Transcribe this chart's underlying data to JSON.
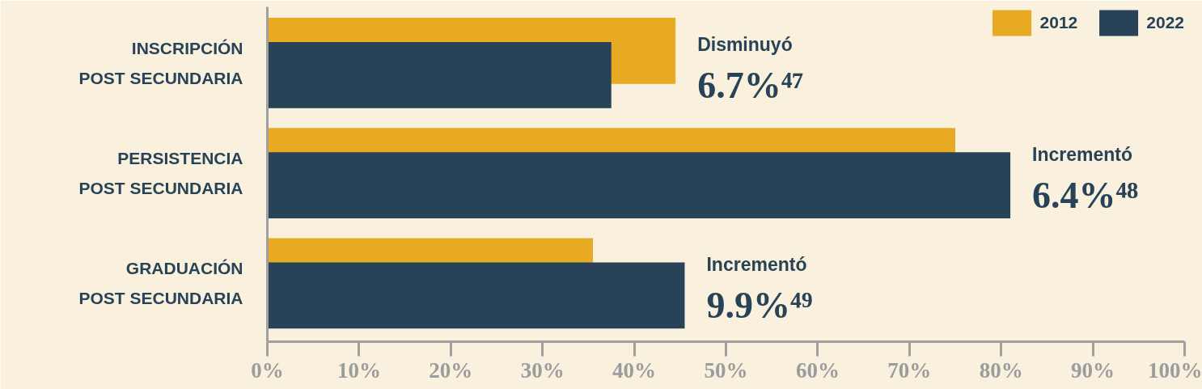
{
  "chart_data": {
    "type": "bar",
    "orientation": "horizontal",
    "categories": [
      "INSCRIPCIÓN\nPOST SECUNDARIA",
      "PERSISTENCIA\nPOST SECUNDARIA",
      "GRADUACIÓN\nPOST SECUNDARIA"
    ],
    "series": [
      {
        "name": "2012",
        "color": "#e8a923",
        "values": [
          44.5,
          75,
          35.5
        ]
      },
      {
        "name": "2022",
        "color": "#284357",
        "values": [
          37.5,
          81,
          45.5
        ]
      }
    ],
    "xlim": [
      0,
      100
    ],
    "xticks": [
      {
        "value": 0,
        "label": "0%"
      },
      {
        "value": 10,
        "label": "10%"
      },
      {
        "value": 20,
        "label": "20%"
      },
      {
        "value": 30,
        "label": "30%"
      },
      {
        "value": 40,
        "label": "40%"
      },
      {
        "value": 50,
        "label": "50%"
      },
      {
        "value": 60,
        "label": "60%"
      },
      {
        "value": 70,
        "label": "70%"
      },
      {
        "value": 80,
        "label": "80%"
      },
      {
        "value": 90,
        "label": "90%"
      },
      {
        "value": 100,
        "label": "100%"
      }
    ],
    "annotations": [
      {
        "text": "Disminuyó",
        "x": 44.5,
        "y": "INSCRIPCIÓN\nPOST SECUNDARIA"
      },
      {
        "text": "6.7%⁴⁷",
        "x": 44.5,
        "y": "INSCRIPCIÓN\nPOST SECUNDARIA"
      },
      {
        "text": "Incrementó",
        "x": 81,
        "y": "PERSISTENCIA\nPOST SECUNDARIA"
      },
      {
        "text": "6.4%⁴⁸",
        "x": 81,
        "y": "PERSISTENCIA\nPOST SECUNDARIA"
      },
      {
        "text": "Incrementó",
        "x": 45.5,
        "y": "GRADUACIÓN\nPOST SECUNDARIA"
      },
      {
        "text": "9.9%⁴⁹",
        "x": 45.5,
        "y": "GRADUACIÓN\nPOST SECUNDARIA"
      }
    ],
    "grid": false,
    "legend": "top right"
  }
}
